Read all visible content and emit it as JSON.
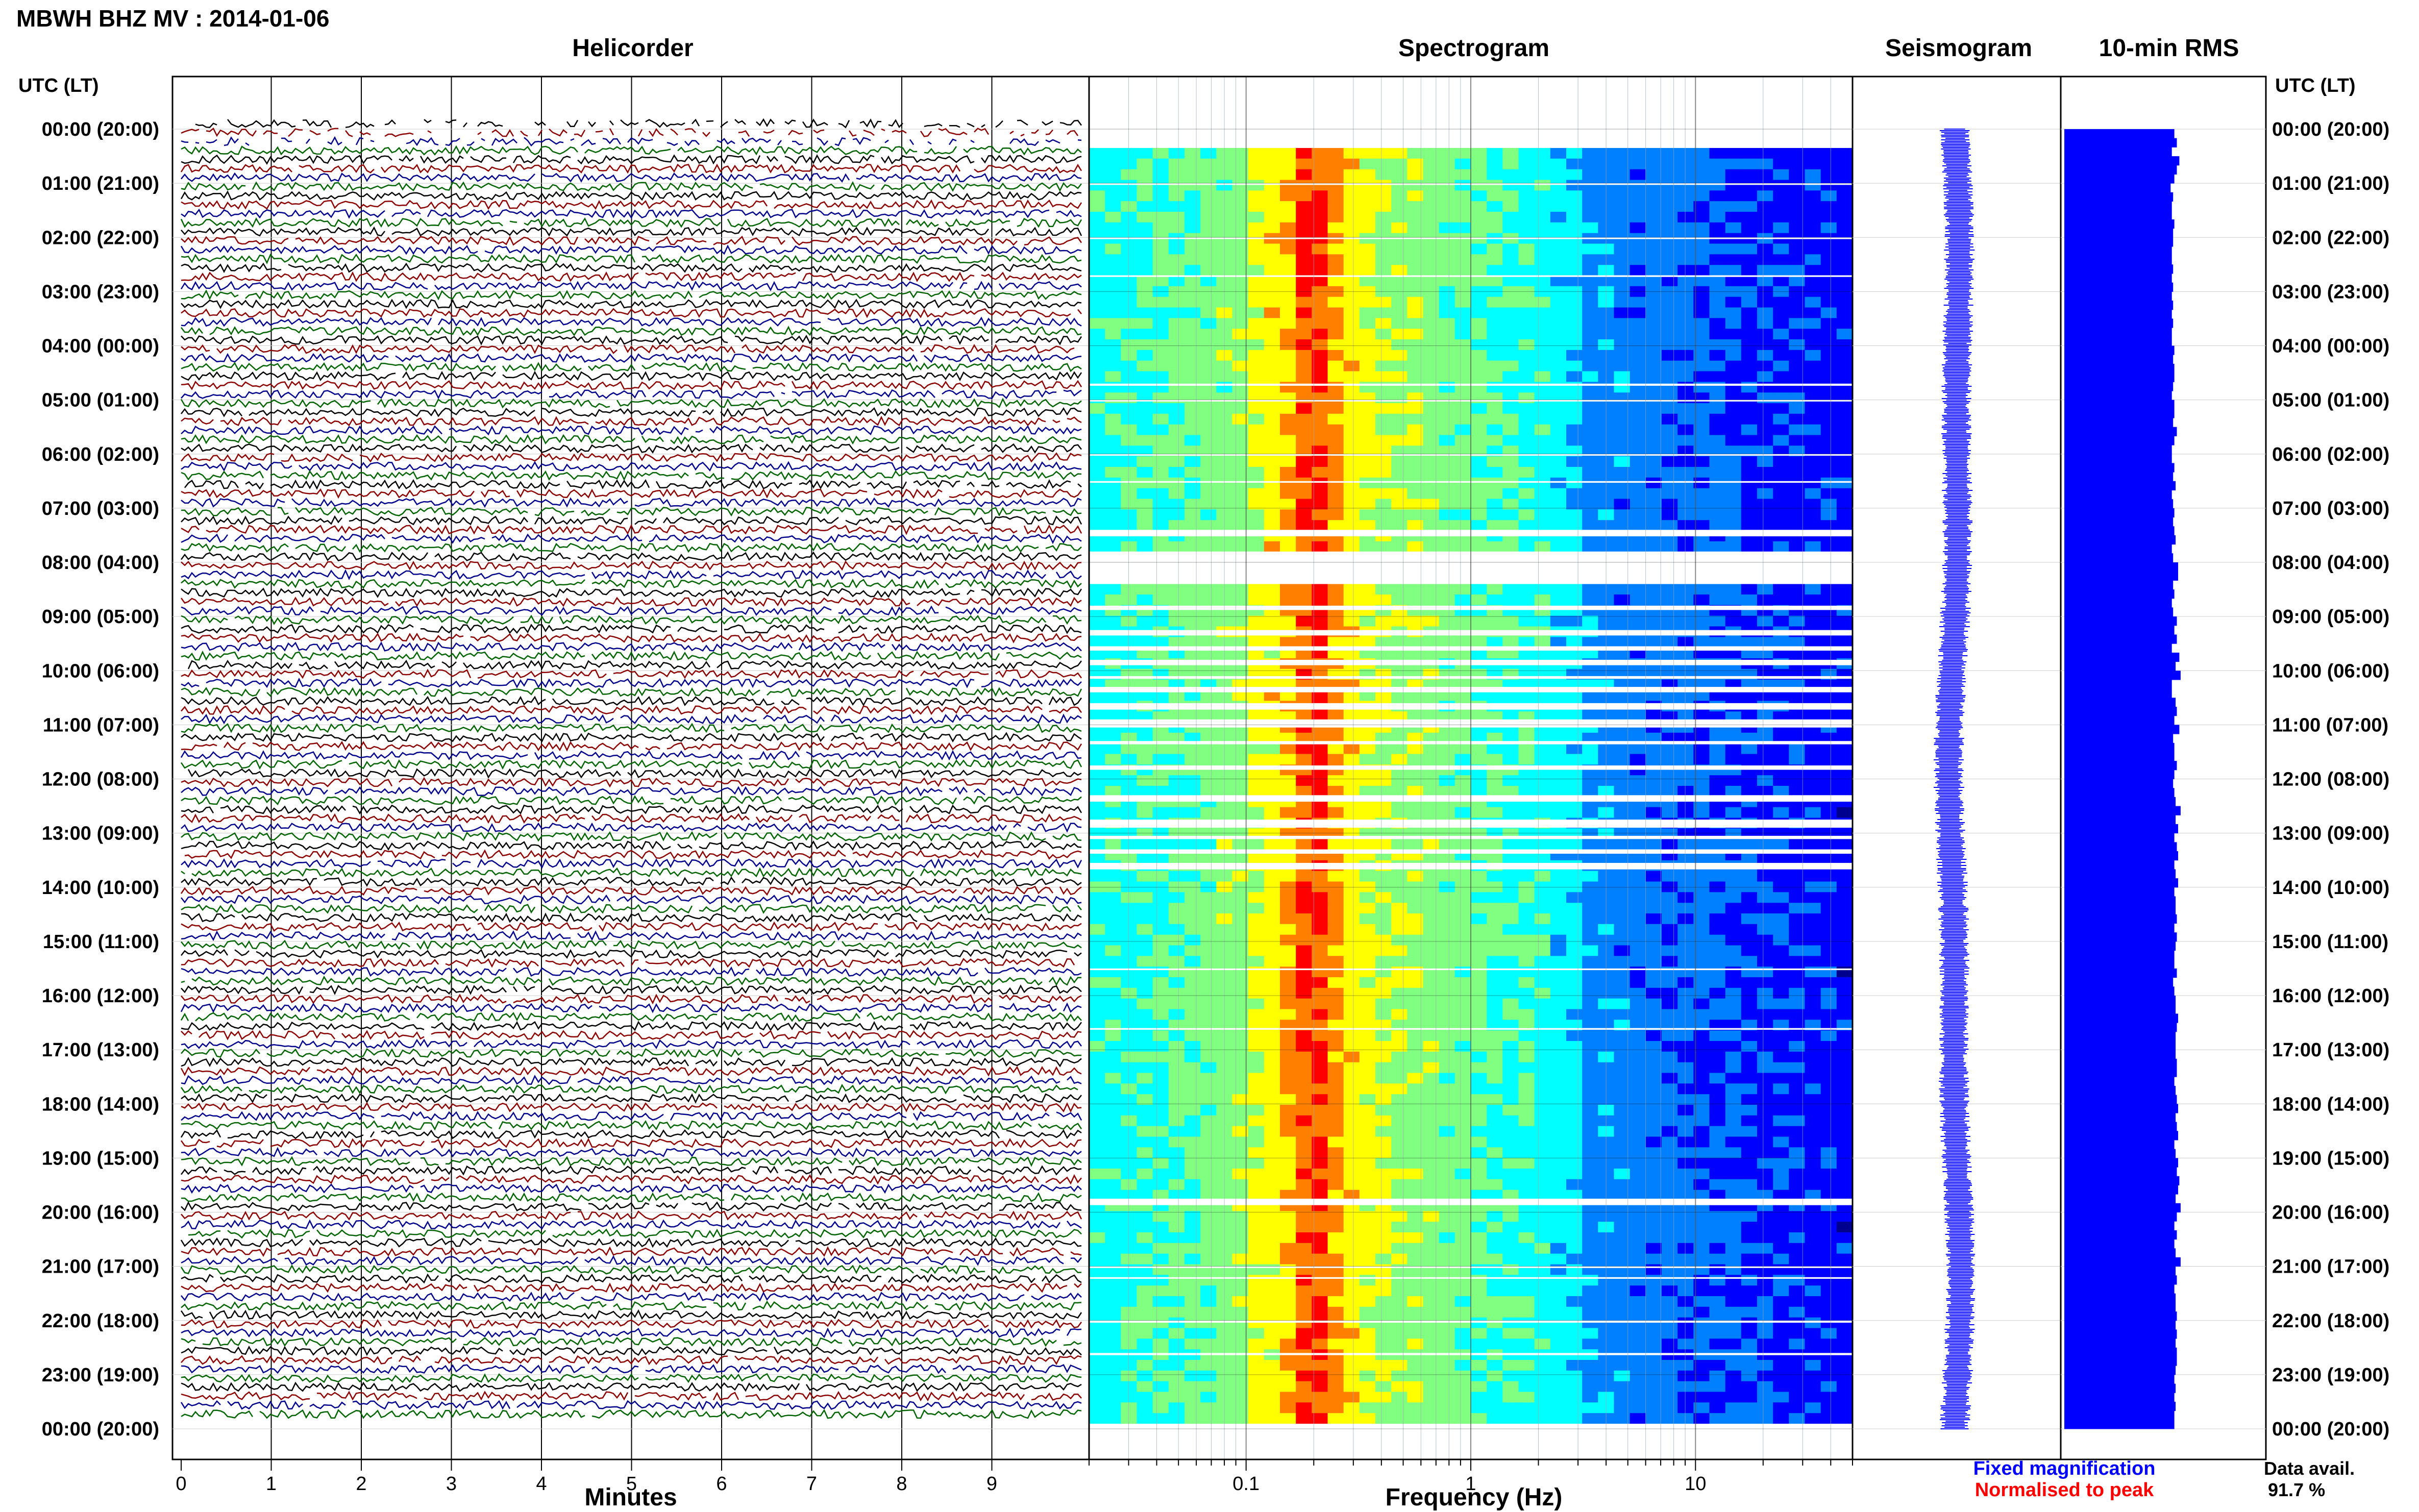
{
  "header": {
    "title": "MBWH BHZ MV : 2014-01-06"
  },
  "panels": {
    "helicorder": "Helicorder",
    "spectrogram": "Spectrogram",
    "seismogram": "Seismogram",
    "rms": "10-min RMS"
  },
  "time_axis": {
    "header": "UTC (LT)",
    "labels": [
      "00:00 (20:00)",
      "01:00 (21:00)",
      "02:00 (22:00)",
      "03:00 (23:00)",
      "04:00 (00:00)",
      "05:00 (01:00)",
      "06:00 (02:00)",
      "07:00 (03:00)",
      "08:00 (04:00)",
      "09:00 (05:00)",
      "10:00 (06:00)",
      "11:00 (07:00)",
      "12:00 (08:00)",
      "13:00 (09:00)",
      "14:00 (10:00)",
      "15:00 (11:00)",
      "16:00 (12:00)",
      "17:00 (13:00)",
      "18:00 (14:00)",
      "19:00 (15:00)",
      "20:00 (16:00)",
      "21:00 (17:00)",
      "22:00 (18:00)",
      "23:00 (19:00)",
      "00:00 (20:00)"
    ]
  },
  "legend": {
    "fixed": "Fixed magnification",
    "normalised": "Normalised to peak",
    "avail_label": "Data avail.",
    "avail_value": "91.7 %"
  },
  "colors": {
    "trace_colors": [
      "#000000",
      "#8b0000",
      "#00008b",
      "#006400"
    ],
    "fixed": "#0000ff",
    "normalised": "#ff0000",
    "rms_bar": "#0000ff",
    "spectro_colormap": [
      "#00008f",
      "#0000ff",
      "#0080ff",
      "#00ffff",
      "#80ff80",
      "#ffff00",
      "#ff8000",
      "#ff0000"
    ]
  },
  "chart_data": [
    {
      "type": "line",
      "name": "helicorder",
      "title": "Helicorder",
      "xlabel": "Minutes",
      "ylabel": "UTC (LT)",
      "x_ticks": [
        "0",
        "1",
        "2",
        "3",
        "4",
        "5",
        "6",
        "7",
        "8",
        "9"
      ],
      "xlim": [
        0,
        10
      ],
      "rows": 144,
      "grid": true
    },
    {
      "type": "heatmap",
      "name": "spectrogram",
      "title": "Spectrogram",
      "xlabel": "Frequency (Hz)",
      "x_scale": "log",
      "xlim": [
        0.02,
        50
      ],
      "x_ticks": [
        "0.1",
        "1",
        "10"
      ],
      "peak_band_hz": [
        0.15,
        0.3
      ],
      "gaps_utc": [
        "01:00",
        "02:00",
        "05:00",
        "06:00",
        "07:30",
        "08:00-08:45",
        "09:30-11:15",
        "12:30-13:45",
        "15:30",
        "16:40",
        "19:40-20:00",
        "21:00",
        "22:00",
        "22:40"
      ]
    },
    {
      "type": "line",
      "name": "seismogram",
      "title": "Seismogram",
      "xlabel": "",
      "ylabel": "UTC (LT)"
    },
    {
      "type": "bar",
      "name": "rms",
      "title": "10-min RMS",
      "orientation": "horizontal",
      "bins": 144,
      "units": "relative",
      "values": [
        0.88,
        0.9,
        0.86,
        0.92,
        0.9,
        0.88,
        0.85,
        0.87,
        0.86,
        0.86,
        0.88,
        0.87,
        0.87,
        0.86,
        0.86,
        0.87,
        0.86,
        0.87,
        0.86,
        0.87,
        0.86,
        0.87,
        0.86,
        0.86,
        0.88,
        0.87,
        0.88,
        0.88,
        0.87,
        0.86,
        0.88,
        0.88,
        0.87,
        0.9,
        0.88,
        0.86,
        0.86,
        0.88,
        0.87,
        0.89,
        0.86,
        0.87,
        0.88,
        0.87,
        0.88,
        0.89,
        0.86,
        0.87,
        0.91,
        0.91,
        0.87,
        0.88,
        0.86,
        0.87,
        0.9,
        0.88,
        0.9,
        0.86,
        0.92,
        0.89,
        0.93,
        0.86,
        0.86,
        0.89,
        0.9,
        0.88,
        0.92,
        0.87,
        0.88,
        0.88,
        0.9,
        0.88,
        0.87,
        0.88,
        0.89,
        0.93,
        0.89,
        0.91,
        0.88,
        0.9,
        0.91,
        0.88,
        0.89,
        0.91,
        0.88,
        0.89,
        0.89,
        0.9,
        0.88,
        0.9,
        0.89,
        0.88,
        0.88,
        0.9,
        0.87,
        0.88,
        0.89,
        0.89,
        0.91,
        0.9,
        0.89,
        0.89,
        0.89,
        0.9,
        0.9,
        0.88,
        0.89,
        0.9,
        0.91,
        0.89,
        0.9,
        0.91,
        0.88,
        0.89,
        0.91,
        0.9,
        0.92,
        0.91,
        0.89,
        0.93,
        0.9,
        0.88,
        0.9,
        0.88,
        0.89,
        0.93,
        0.89,
        0.9,
        0.88,
        0.89,
        0.89,
        0.9,
        0.89,
        0.9,
        0.89,
        0.9,
        0.9,
        0.89,
        0.88,
        0.89,
        0.88,
        0.89,
        0.88,
        0.88
      ]
    }
  ]
}
